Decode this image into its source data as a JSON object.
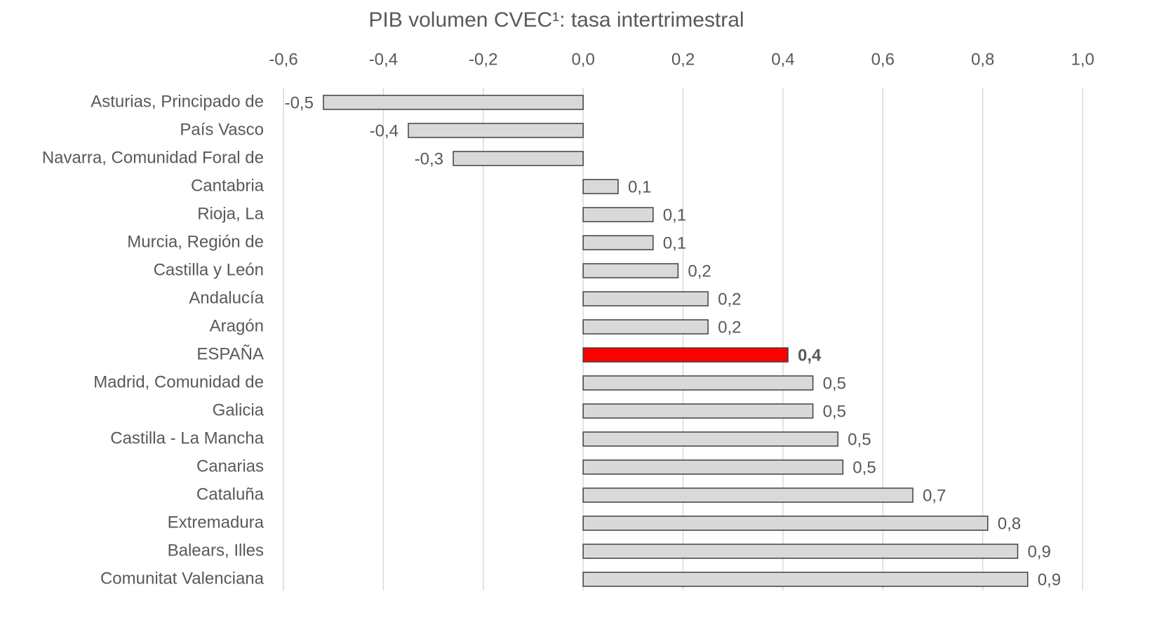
{
  "chart_data": {
    "type": "barh",
    "title": "PIB volumen CVEC¹: tasa intertrimestral",
    "categories": [
      "Asturias, Principado de",
      "País Vasco",
      "Navarra, Comunidad Foral de",
      "Cantabria",
      "Rioja, La",
      "Murcia, Región de",
      "Castilla y León",
      "Andalucía",
      "Aragón",
      "ESPAÑA",
      "Madrid, Comunidad de",
      "Galicia",
      "Castilla - La Mancha",
      "Canarias",
      "Cataluña",
      "Extremadura",
      "Balears, Illes",
      "Comunitat Valenciana"
    ],
    "values": [
      -0.52,
      -0.35,
      -0.26,
      0.07,
      0.14,
      0.14,
      0.19,
      0.25,
      0.25,
      0.41,
      0.46,
      0.46,
      0.51,
      0.52,
      0.66,
      0.81,
      0.87,
      0.89
    ],
    "value_labels": [
      "-0,5",
      "-0,4",
      "-0,3",
      "0,1",
      "0,1",
      "0,1",
      "0,2",
      "0,2",
      "0,2",
      "0,4",
      "0,5",
      "0,5",
      "0,5",
      "0,5",
      "0,7",
      "0,8",
      "0,9",
      "0,9"
    ],
    "color": "#d9d9d9",
    "colors": [
      "#d9d9d9",
      "#d9d9d9",
      "#d9d9d9",
      "#d9d9d9",
      "#d9d9d9",
      "#d9d9d9",
      "#d9d9d9",
      "#d9d9d9",
      "#d9d9d9",
      "#ff0000",
      "#d9d9d9",
      "#d9d9d9",
      "#d9d9d9",
      "#d9d9d9",
      "#d9d9d9",
      "#d9d9d9",
      "#d9d9d9",
      "#d9d9d9"
    ],
    "xlim": [
      -0.6,
      1.0
    ],
    "xticks": [
      {
        "value": -0.6,
        "label": "-0,6"
      },
      {
        "value": -0.4,
        "label": "-0,4"
      },
      {
        "value": -0.2,
        "label": "-0,2"
      },
      {
        "value": 0,
        "label": "0,0"
      },
      {
        "value": 0.2,
        "label": "0,2"
      },
      {
        "value": 0.4,
        "label": "0,4"
      },
      {
        "value": 0.6,
        "label": "0,6"
      },
      {
        "value": 0.8,
        "label": "0,8"
      },
      {
        "value": 1.0,
        "label": "1,0"
      }
    ],
    "grid": true
  }
}
